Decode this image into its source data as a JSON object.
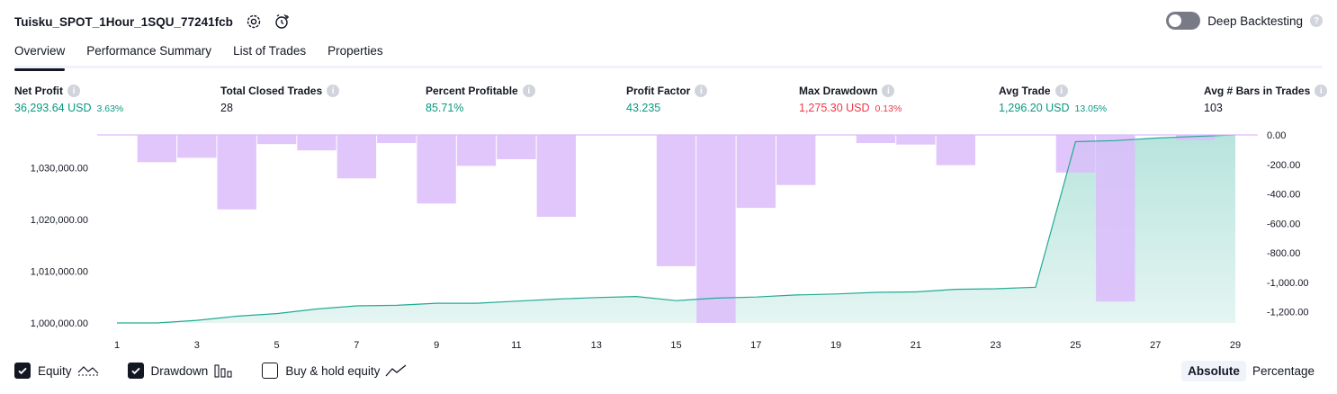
{
  "header": {
    "strategy_name": "Tuisku_SPOT_1Hour_1SQU_77241fcb",
    "deep_backtesting_label": "Deep Backtesting",
    "deep_backtesting_enabled": false
  },
  "tabs": [
    {
      "label": "Overview",
      "active": true
    },
    {
      "label": "Performance Summary",
      "active": false
    },
    {
      "label": "List of Trades",
      "active": false
    },
    {
      "label": "Properties",
      "active": false
    }
  ],
  "metrics": {
    "net_profit": {
      "label": "Net Profit",
      "value": "36,293.64 USD",
      "pct": "3.63%"
    },
    "total_closed_trades": {
      "label": "Total Closed Trades",
      "value": "28"
    },
    "percent_profitable": {
      "label": "Percent Profitable",
      "value": "85.71%"
    },
    "profit_factor": {
      "label": "Profit Factor",
      "value": "43.235"
    },
    "max_drawdown": {
      "label": "Max Drawdown",
      "value": "1,275.30 USD",
      "pct": "0.13%"
    },
    "avg_trade": {
      "label": "Avg Trade",
      "value": "1,296.20 USD",
      "pct": "13.05%"
    },
    "avg_bars": {
      "label": "Avg # Bars in Trades",
      "value": "103"
    }
  },
  "colors": {
    "positive": "#089981",
    "negative": "#f23645",
    "equity_line": "#22ab94",
    "drawdown_bar": "#dcbcfc",
    "overlap_bar": "#b3b1e3"
  },
  "chart_data": {
    "type": "line",
    "x": [
      1,
      2,
      3,
      4,
      5,
      6,
      7,
      8,
      9,
      10,
      11,
      12,
      13,
      14,
      15,
      16,
      17,
      18,
      19,
      20,
      21,
      22,
      23,
      24,
      25,
      26,
      27,
      28,
      29
    ],
    "x_ticks": [
      "1",
      "3",
      "5",
      "7",
      "9",
      "11",
      "13",
      "15",
      "17",
      "19",
      "21",
      "23",
      "25",
      "27",
      "29"
    ],
    "left_axis": {
      "ticks": [
        "1,000,000.00",
        "1,010,000.00",
        "1,020,000.00",
        "1,030,000.00"
      ],
      "ylim": [
        1000000,
        1036300
      ]
    },
    "right_axis": {
      "ticks": [
        "0.00",
        "-200.00",
        "-400.00",
        "-600.00",
        "-800.00",
        "-1,000.00",
        "-1,200.00"
      ],
      "ylim": [
        -1275.3,
        0
      ]
    },
    "series": [
      {
        "name": "Equity",
        "kind": "area-line",
        "axis": "left",
        "values": [
          1000000,
          1000000,
          1000500,
          1001300,
          1001800,
          1002700,
          1003300,
          1003400,
          1003800,
          1003800,
          1004200,
          1004600,
          1004900,
          1005100,
          1004300,
          1004800,
          1005000,
          1005400,
          1005600,
          1005900,
          1006000,
          1006500,
          1006600,
          1006900,
          1035000,
          1035200,
          1035700,
          1036000,
          1036294
        ]
      },
      {
        "name": "Drawdown",
        "kind": "bar",
        "axis": "right",
        "values": [
          0,
          -185,
          -155,
          -505,
          -62,
          -105,
          -295,
          -55,
          -465,
          -210,
          -165,
          -555,
          0,
          0,
          -890,
          -1275.3,
          -495,
          -340,
          0,
          -55,
          -65,
          -205,
          0,
          0,
          -255,
          -1130,
          0,
          -35,
          0
        ]
      }
    ]
  },
  "legend": [
    {
      "label": "Equity",
      "checked": true,
      "icon": "equity-line-icon"
    },
    {
      "label": "Drawdown",
      "checked": true,
      "icon": "drawdown-bars-icon"
    },
    {
      "label": "Buy & hold equity",
      "checked": false,
      "icon": "buy-hold-line-icon"
    }
  ],
  "modes": [
    {
      "label": "Absolute",
      "active": true
    },
    {
      "label": "Percentage",
      "active": false
    }
  ]
}
